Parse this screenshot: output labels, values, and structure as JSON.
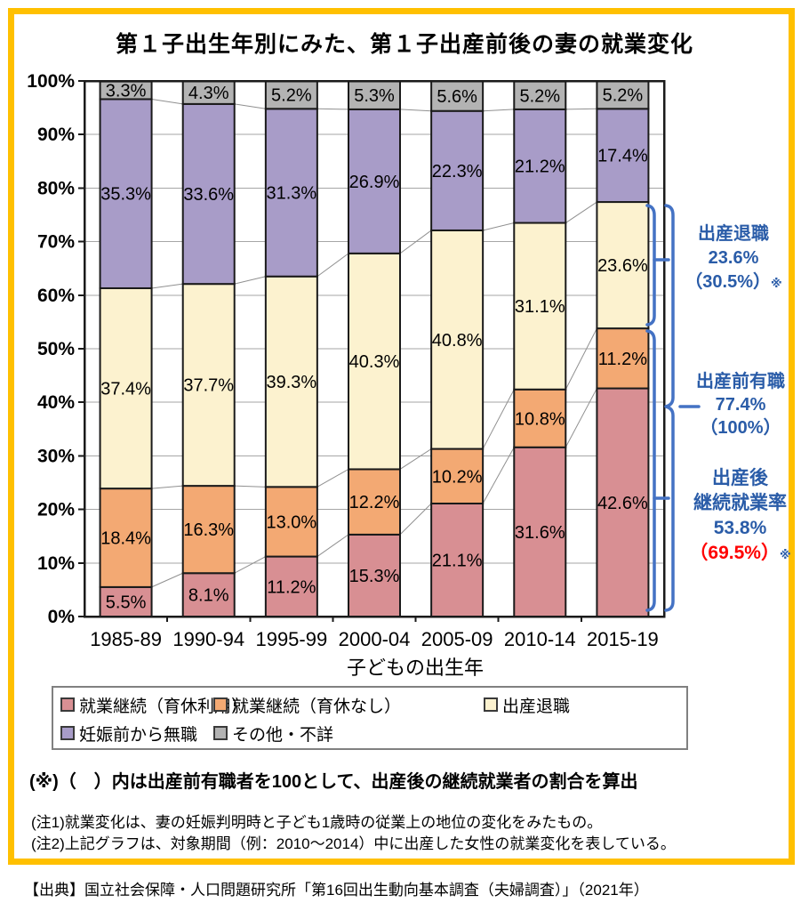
{
  "title": "第１子出生年別にみた、第１子出産前後の妻の就業変化",
  "chart_data": {
    "type": "bar",
    "stacked": true,
    "categories": [
      "1985-89",
      "1990-94",
      "1995-99",
      "2000-04",
      "2005-09",
      "2010-14",
      "2015-19"
    ],
    "xlabel": "子どもの出生年",
    "ylabel": "",
    "ylim": [
      0,
      100
    ],
    "yticks": [
      "0%",
      "10%",
      "20%",
      "30%",
      "40%",
      "50%",
      "60%",
      "70%",
      "80%",
      "90%",
      "100%"
    ],
    "grid": true,
    "legend_position": "bottom",
    "series": [
      {
        "name": "就業継続（育休利用）",
        "color": "#D88F93",
        "values": [
          5.5,
          8.1,
          11.2,
          15.3,
          21.1,
          31.6,
          42.6
        ]
      },
      {
        "name": "就業継続（育休なし）",
        "color": "#F3A973",
        "values": [
          18.4,
          16.3,
          13.0,
          12.2,
          10.2,
          10.8,
          11.2
        ]
      },
      {
        "name": "出産退職",
        "color": "#FCF2CF",
        "values": [
          37.4,
          37.7,
          39.3,
          40.3,
          40.8,
          31.1,
          23.6
        ]
      },
      {
        "name": "妊娠前から無職",
        "color": "#A89CC8",
        "values": [
          35.3,
          33.6,
          31.3,
          26.9,
          22.3,
          21.2,
          17.4
        ]
      },
      {
        "name": "その他・不詳",
        "color": "#B3B3B3",
        "values": [
          3.3,
          4.3,
          5.2,
          5.3,
          5.6,
          5.2,
          5.2
        ]
      }
    ],
    "value_suffix": "%"
  },
  "annotations": {
    "taishoku": {
      "label": "出産退職",
      "pct": "23.6%",
      "paren": "（30.5%）",
      "mark": "※"
    },
    "yushoku": {
      "label": "出産前有職",
      "pct": "77.4%",
      "paren": "（100%）"
    },
    "keizoku": {
      "line1": "出産後",
      "line2": "継続就業率",
      "pct": "53.8%",
      "paren": "（69.5%）",
      "mark": "※"
    }
  },
  "colors": {
    "frame_border": "#FFC000",
    "annotation_text": "#2A5CA8",
    "bracket": "#4472C4",
    "highlight_red": "#FF0000",
    "bar_border": "#1a1a1a",
    "gridline": "#a6a6a6",
    "connector": "#909090"
  },
  "notes": {
    "star": "(※)（　）内は出産前有職者を100として、出産後の継続就業者の割合を算出",
    "note1": "(注1)就業変化は、妻の妊娠判明時と子ども1歳時の従業上の地位の変化をみたもの。",
    "note2": "(注2)上記グラフは、対象期間（例：2010～2014）中に出産した女性の就業変化を表している。"
  },
  "source": "【出典】国立社会保障・人口問題研究所「第16回出生動向基本調査（夫婦調査）」（2021年）"
}
